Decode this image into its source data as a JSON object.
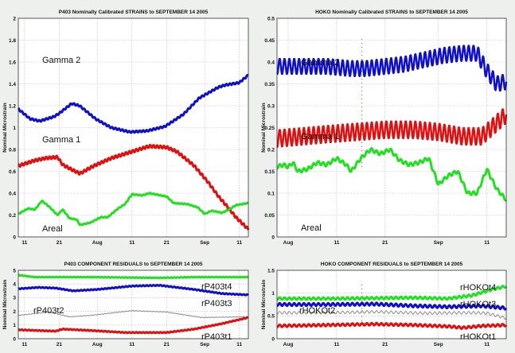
{
  "chart_data": [
    {
      "type": "line",
      "title": "P403 Nominally Calibrated  STRAINS  to  SEPTEMBER 14    2005",
      "ylabel": "Nominal Microstrain",
      "xlabel": "",
      "xlim": [
        9.2,
        75.6
      ],
      "ylim": [
        0,
        2
      ],
      "grid": true,
      "yticks": [
        {
          "v": 0,
          "label": "0"
        },
        {
          "v": 0.2,
          "label": "0.2"
        },
        {
          "v": 0.4,
          "label": "0.4"
        },
        {
          "v": 0.6,
          "label": "0.6"
        },
        {
          "v": 0.8,
          "label": "0.8"
        },
        {
          "v": 1,
          "label": "1"
        },
        {
          "v": 1.2,
          "label": "1.2"
        },
        {
          "v": 1.4,
          "label": "1.4"
        },
        {
          "v": 1.6,
          "label": "1.6"
        },
        {
          "v": 1.8,
          "label": "1.8"
        },
        {
          "v": 2,
          "label": "2"
        }
      ],
      "xticks": [
        {
          "v": 11,
          "label": "11"
        },
        {
          "v": 21,
          "label": "21"
        },
        {
          "v": 32,
          "label": "Aug"
        },
        {
          "v": 42,
          "label": "11"
        },
        {
          "v": 52,
          "label": "21"
        },
        {
          "v": 63,
          "label": "Sep"
        },
        {
          "v": 73,
          "label": "11"
        }
      ],
      "series": [
        {
          "name": "Gamma 2",
          "color": "#1010c8",
          "width": 3,
          "tidal_amplitude": 0.008,
          "points": [
            [
              9.2,
              1.17
            ],
            [
              12.6,
              1.08
            ],
            [
              15.4,
              1.06
            ],
            [
              19.5,
              1.1
            ],
            [
              21,
              1.13
            ],
            [
              24.6,
              1.22
            ],
            [
              26.9,
              1.2
            ],
            [
              31.5,
              1.08
            ],
            [
              36,
              1.0
            ],
            [
              41.4,
              0.96
            ],
            [
              46.4,
              0.97
            ],
            [
              51.5,
              1.01
            ],
            [
              56.8,
              1.12
            ],
            [
              61.4,
              1.27
            ],
            [
              67,
              1.37
            ],
            [
              69,
              1.39
            ],
            [
              72.9,
              1.41
            ],
            [
              75.6,
              1.48
            ]
          ]
        },
        {
          "name": "Gamma 1",
          "color": "#e01010",
          "width": 3,
          "tidal_amplitude": 0.012,
          "points": [
            [
              9.2,
              0.65
            ],
            [
              14,
              0.7
            ],
            [
              17,
              0.72
            ],
            [
              20.5,
              0.73
            ],
            [
              22,
              0.66
            ],
            [
              25,
              0.61
            ],
            [
              27,
              0.58
            ],
            [
              31,
              0.65
            ],
            [
              36,
              0.72
            ],
            [
              42,
              0.78
            ],
            [
              47,
              0.83
            ],
            [
              52,
              0.82
            ],
            [
              55,
              0.78
            ],
            [
              60,
              0.65
            ],
            [
              64,
              0.5
            ],
            [
              67,
              0.37
            ],
            [
              70,
              0.26
            ],
            [
              72,
              0.18
            ],
            [
              75.6,
              0.07
            ]
          ]
        },
        {
          "name": "Areal",
          "color": "#20e020",
          "width": 3,
          "tidal_amplitude": 0.004,
          "points": [
            [
              9.2,
              0.21
            ],
            [
              12,
              0.26
            ],
            [
              14,
              0.25
            ],
            [
              16,
              0.33
            ],
            [
              18,
              0.28
            ],
            [
              20.5,
              0.2
            ],
            [
              22,
              0.25
            ],
            [
              24,
              0.17
            ],
            [
              26,
              0.16
            ],
            [
              27,
              0.11
            ],
            [
              30,
              0.13
            ],
            [
              33,
              0.18
            ],
            [
              35,
              0.18
            ],
            [
              38,
              0.26
            ],
            [
              40,
              0.3
            ],
            [
              42,
              0.39
            ],
            [
              45,
              0.38
            ],
            [
              47,
              0.4
            ],
            [
              52,
              0.37
            ],
            [
              54,
              0.31
            ],
            [
              58,
              0.3
            ],
            [
              61,
              0.27
            ],
            [
              63,
              0.21
            ],
            [
              65,
              0.24
            ],
            [
              68,
              0.22
            ],
            [
              70,
              0.25
            ],
            [
              72,
              0.29
            ],
            [
              75.6,
              0.31
            ]
          ]
        }
      ]
    },
    {
      "type": "line",
      "title": "HOKO Nominally Calibrated  STRAINS  to  SEPTEMBER 14    2005",
      "ylabel": "Nominal Microstrain",
      "xlabel": "",
      "xlim": [
        29.7,
        77
      ],
      "ylim": [
        0,
        0.5
      ],
      "grid": true,
      "yticks": [
        {
          "v": 0,
          "label": "0"
        },
        {
          "v": 0.05,
          "label": "0.05"
        },
        {
          "v": 0.1,
          "label": "0.1"
        },
        {
          "v": 0.15,
          "label": "0.15"
        },
        {
          "v": 0.2,
          "label": "0.2"
        },
        {
          "v": 0.25,
          "label": "0.25"
        },
        {
          "v": 0.3,
          "label": "0.3"
        },
        {
          "v": 0.35,
          "label": "0.35"
        },
        {
          "v": 0.4,
          "label": "0.4"
        },
        {
          "v": 0.45,
          "label": "0.45"
        },
        {
          "v": 0.5,
          "label": "0.5"
        }
      ],
      "xticks": [
        {
          "v": 32,
          "label": "Aug"
        },
        {
          "v": 42,
          "label": "11"
        },
        {
          "v": 52,
          "label": "21"
        },
        {
          "v": 63,
          "label": "Sep"
        },
        {
          "v": 73,
          "label": "11"
        }
      ],
      "spike": {
        "day": 47.2,
        "from": 0.16,
        "to": 0.46,
        "color": "#20c020"
      },
      "series": [
        {
          "name": "Gamma 2",
          "color": "#1010c8",
          "width": 2.5,
          "tidal_amplitude": 0.018,
          "points": [
            [
              29.7,
              0.39
            ],
            [
              35,
              0.39
            ],
            [
              40,
              0.39
            ],
            [
              45,
              0.385
            ],
            [
              48,
              0.385
            ],
            [
              52,
              0.39
            ],
            [
              56,
              0.395
            ],
            [
              60,
              0.405
            ],
            [
              64,
              0.415
            ],
            [
              68,
              0.42
            ],
            [
              71,
              0.42
            ],
            [
              73,
              0.38
            ],
            [
              75,
              0.35
            ],
            [
              77,
              0.355
            ]
          ]
        },
        {
          "name": "Gamma 1",
          "color": "#e01010",
          "width": 2.5,
          "tidal_amplitude": 0.02,
          "points": [
            [
              29.7,
              0.225
            ],
            [
              35,
              0.23
            ],
            [
              40,
              0.235
            ],
            [
              46,
              0.24
            ],
            [
              52,
              0.245
            ],
            [
              58,
              0.245
            ],
            [
              63,
              0.24
            ],
            [
              68,
              0.23
            ],
            [
              72,
              0.23
            ],
            [
              74,
              0.25
            ],
            [
              77,
              0.28
            ]
          ]
        },
        {
          "name": "Areal",
          "color": "#20e020",
          "width": 3,
          "tidal_amplitude": 0.004,
          "points": [
            [
              29.7,
              0.16
            ],
            [
              31,
              0.165
            ],
            [
              32,
              0.16
            ],
            [
              33,
              0.17
            ],
            [
              34,
              0.15
            ],
            [
              36,
              0.155
            ],
            [
              38,
              0.17
            ],
            [
              40,
              0.165
            ],
            [
              42,
              0.18
            ],
            [
              44,
              0.165
            ],
            [
              45,
              0.15
            ],
            [
              47,
              0.18
            ],
            [
              49,
              0.2
            ],
            [
              51,
              0.19
            ],
            [
              53,
              0.2
            ],
            [
              55,
              0.175
            ],
            [
              57,
              0.165
            ],
            [
              59,
              0.17
            ],
            [
              61,
              0.18
            ],
            [
              63,
              0.12
            ],
            [
              65,
              0.14
            ],
            [
              67,
              0.15
            ],
            [
              69,
              0.1
            ],
            [
              71,
              0.1
            ],
            [
              73,
              0.155
            ],
            [
              75,
              0.11
            ],
            [
              77,
              0.085
            ]
          ]
        }
      ]
    },
    {
      "type": "line",
      "title": "P403 COMPONENT RESIDUALS to  SEPTEMBER 14  2005",
      "ylabel": "Nominal Microstrain",
      "xlabel": "",
      "xlim": [
        9.2,
        75.6
      ],
      "ylim": [
        0,
        5
      ],
      "grid": true,
      "yticks": [
        {
          "v": 0,
          "label": "0"
        },
        {
          "v": 1,
          "label": "1"
        },
        {
          "v": 2,
          "label": "2"
        },
        {
          "v": 3,
          "label": "3"
        },
        {
          "v": 4,
          "label": "4"
        },
        {
          "v": 5,
          "label": "5"
        }
      ],
      "xticks": [
        {
          "v": 11,
          "label": "11"
        },
        {
          "v": 21,
          "label": "21"
        },
        {
          "v": 32,
          "label": "Aug"
        },
        {
          "v": 42,
          "label": "11"
        },
        {
          "v": 52,
          "label": "21"
        },
        {
          "v": 63,
          "label": "Sep"
        },
        {
          "v": 73,
          "label": "11"
        }
      ],
      "series": [
        {
          "name": "rP403t4",
          "color": "#20e020",
          "width": 3,
          "tidal_amplitude": 0.02,
          "points": [
            [
              9.2,
              4.65
            ],
            [
              14,
              4.5
            ],
            [
              30,
              4.5
            ],
            [
              50,
              4.45
            ],
            [
              60,
              4.5
            ],
            [
              75.6,
              4.5
            ]
          ]
        },
        {
          "name": "rP403t3",
          "color": "#1010c8",
          "width": 3,
          "tidal_amplitude": 0.03,
          "points": [
            [
              9.2,
              3.65
            ],
            [
              15,
              3.75
            ],
            [
              20,
              3.7
            ],
            [
              25,
              3.5
            ],
            [
              32,
              3.6
            ],
            [
              42,
              3.85
            ],
            [
              50,
              3.9
            ],
            [
              60,
              3.6
            ],
            [
              68,
              3.3
            ],
            [
              75.6,
              3.2
            ]
          ]
        },
        {
          "name": "rP403t2",
          "color": "#888888",
          "width": 1,
          "tidal_amplitude": 0.02,
          "points": [
            [
              9.2,
              1.7
            ],
            [
              18,
              1.95
            ],
            [
              24,
              1.6
            ],
            [
              30,
              1.7
            ],
            [
              42,
              2.05
            ],
            [
              52,
              1.95
            ],
            [
              62,
              1.55
            ],
            [
              75.6,
              1.6
            ]
          ]
        },
        {
          "name": "rP403t1",
          "color": "#e01010",
          "width": 3,
          "tidal_amplitude": 0.03,
          "points": [
            [
              9.2,
              0.65
            ],
            [
              20,
              0.55
            ],
            [
              22,
              0.7
            ],
            [
              30,
              0.6
            ],
            [
              40,
              0.45
            ],
            [
              52,
              0.45
            ],
            [
              60,
              0.7
            ],
            [
              68,
              1.1
            ],
            [
              75.6,
              1.55
            ]
          ]
        }
      ]
    },
    {
      "type": "line",
      "title": "HOKO COMPONENT RESIDUALS to  SEPTEMBER 14  2005",
      "ylabel": "Nominal Microstrain",
      "xlabel": "",
      "xlim": [
        29.7,
        77
      ],
      "ylim": [
        0,
        1.5
      ],
      "grid": true,
      "yticks": [
        {
          "v": 0,
          "label": "0"
        },
        {
          "v": 0.5,
          "label": "0.5"
        },
        {
          "v": 1,
          "label": "1"
        },
        {
          "v": 1.5,
          "label": "1.5"
        }
      ],
      "xticks": [
        {
          "v": 32,
          "label": "Aug"
        },
        {
          "v": 42,
          "label": "11"
        },
        {
          "v": 52,
          "label": "21"
        },
        {
          "v": 63,
          "label": "Sep"
        },
        {
          "v": 73,
          "label": "11"
        }
      ],
      "spike": {
        "day": 47.2,
        "from": 0.3,
        "to": 1.25,
        "color": "#20a020"
      },
      "series": [
        {
          "name": "rHOKOt4",
          "color": "#20e020",
          "width": 3,
          "tidal_amplitude": 0.025,
          "points": [
            [
              29.7,
              0.88
            ],
            [
              40,
              0.88
            ],
            [
              50,
              0.89
            ],
            [
              58,
              0.9
            ],
            [
              65,
              0.88
            ],
            [
              70,
              0.95
            ],
            [
              74,
              1.08
            ],
            [
              77,
              1.15
            ]
          ]
        },
        {
          "name": "rHOKOt3",
          "color": "#1010c8",
          "width": 3,
          "tidal_amplitude": 0.03,
          "points": [
            [
              29.7,
              0.75
            ],
            [
              40,
              0.75
            ],
            [
              50,
              0.76
            ],
            [
              58,
              0.72
            ],
            [
              65,
              0.7
            ],
            [
              72,
              0.72
            ],
            [
              77,
              0.67
            ]
          ]
        },
        {
          "name": "rHOKOt2",
          "color": "#888888",
          "width": 1,
          "tidal_amplitude": 0.03,
          "points": [
            [
              29.7,
              0.57
            ],
            [
              40,
              0.57
            ],
            [
              50,
              0.59
            ],
            [
              60,
              0.56
            ],
            [
              70,
              0.57
            ],
            [
              73,
              0.56
            ],
            [
              77,
              0.45
            ]
          ]
        },
        {
          "name": "rHOKOt1",
          "color": "#e01010",
          "width": 3,
          "tidal_amplitude": 0.025,
          "points": [
            [
              29.7,
              0.28
            ],
            [
              40,
              0.3
            ],
            [
              50,
              0.32
            ],
            [
              58,
              0.3
            ],
            [
              65,
              0.27
            ],
            [
              68,
              0.24
            ],
            [
              72,
              0.28
            ],
            [
              77,
              0.3
            ]
          ]
        }
      ]
    }
  ]
}
